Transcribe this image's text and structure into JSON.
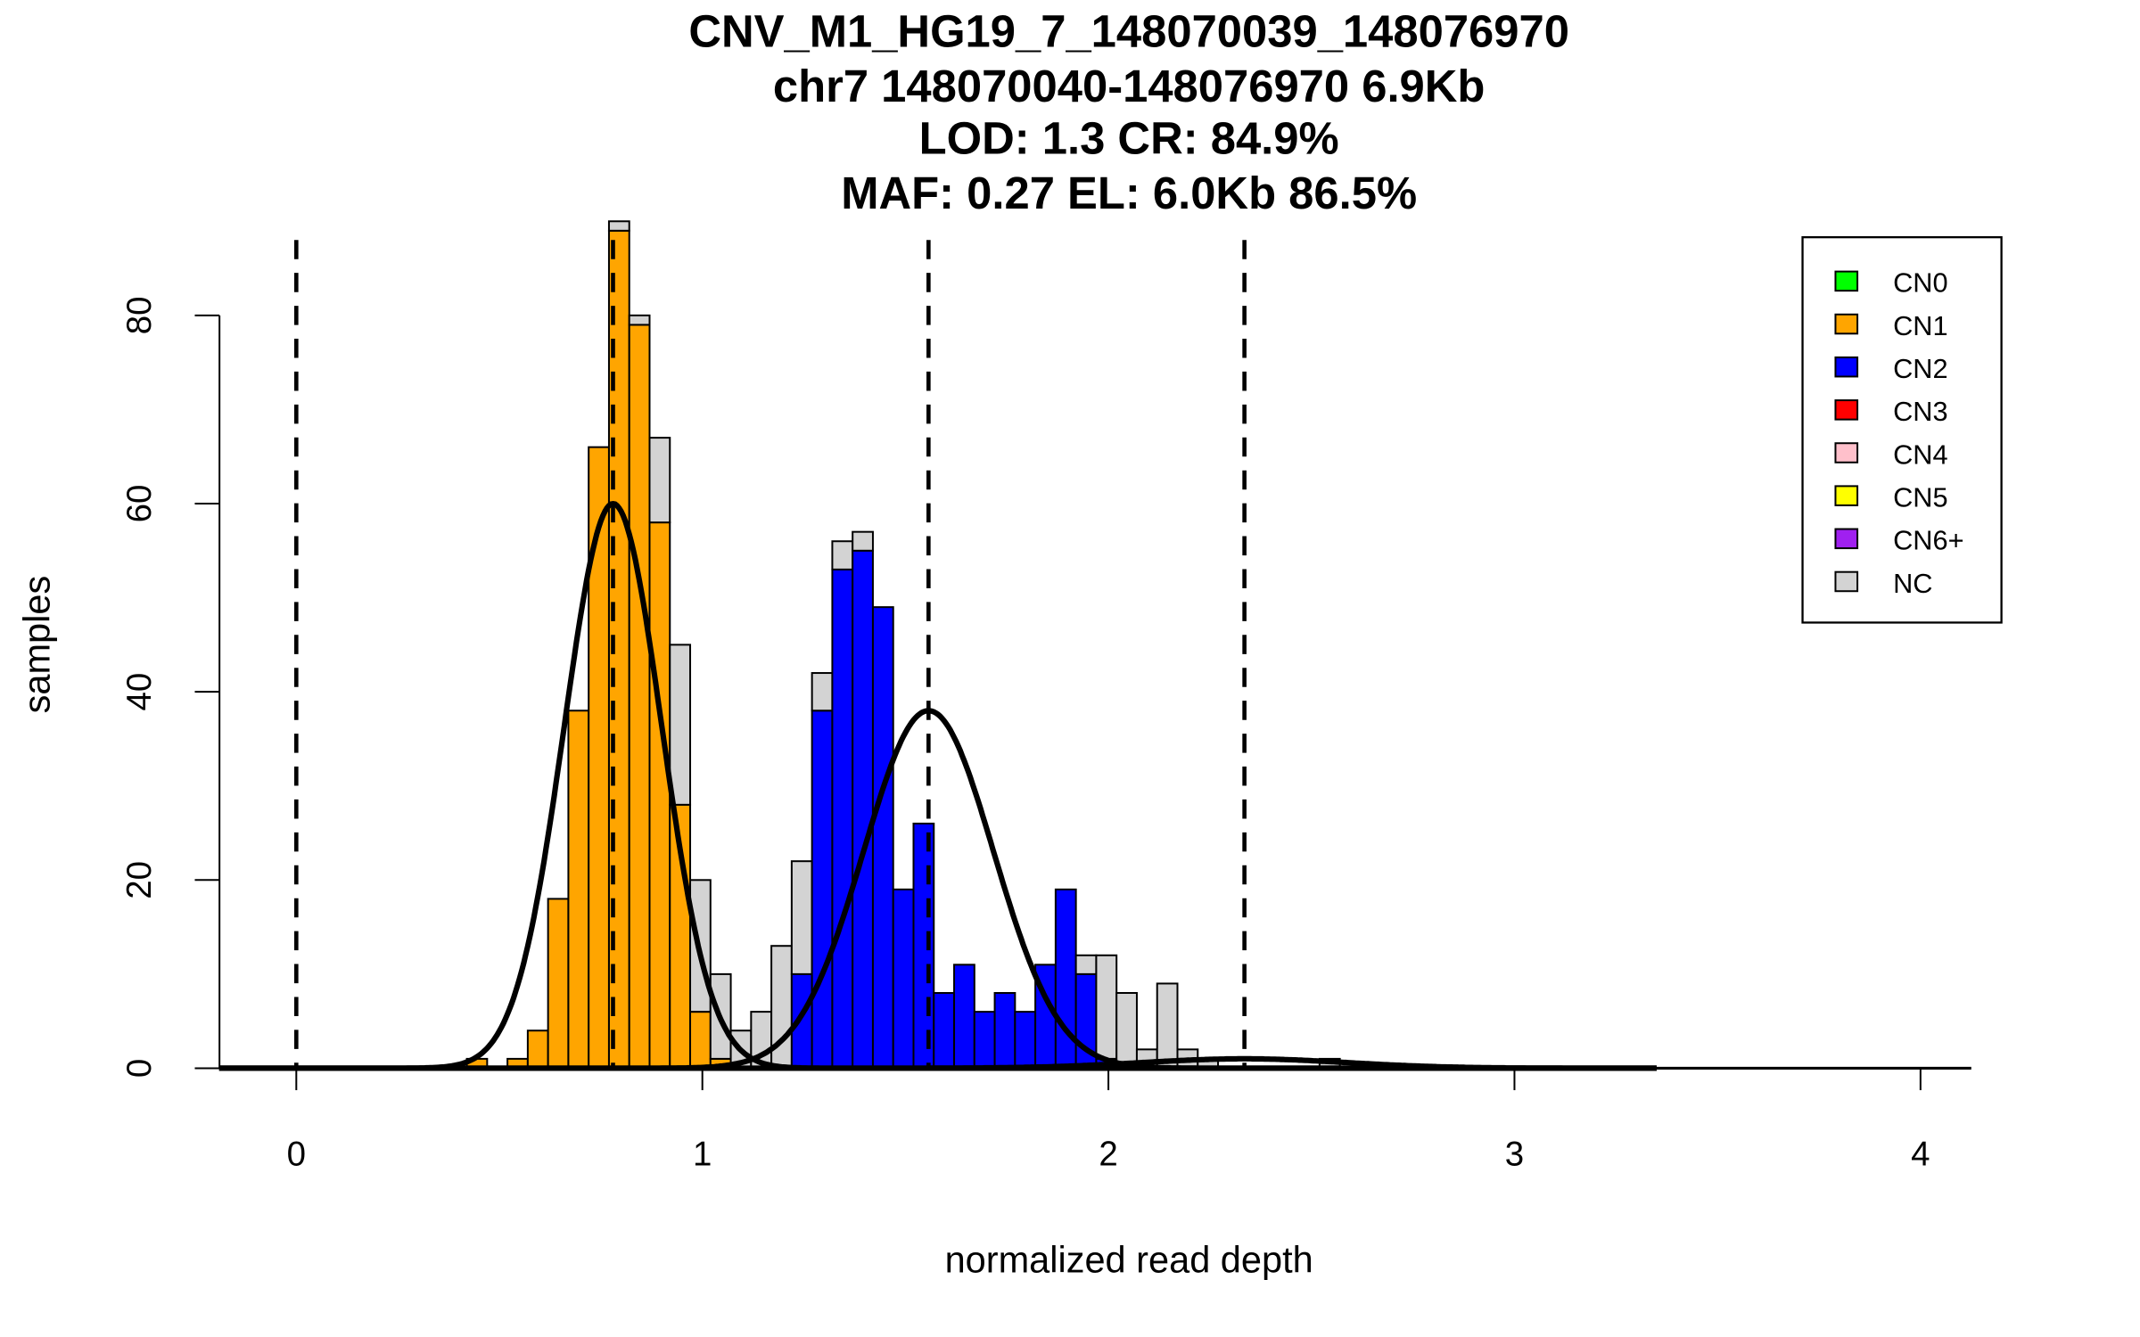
{
  "chart_data": {
    "type": "bar",
    "subtype": "stacked-histogram",
    "title": [
      "CNV_M1_HG19_7_148070039_148076970",
      "chr7 148070040-148076970 6.9Kb",
      "LOD: 1.3 CR: 84.9%",
      "MAF: 0.27 EL: 6.0Kb 86.5%"
    ],
    "xlabel": "normalized read depth",
    "ylabel": "samples",
    "xlim": [
      -0.19,
      4.13
    ],
    "ylim": [
      0,
      88
    ],
    "xticks": [
      "0",
      "1",
      "2",
      "3",
      "4"
    ],
    "yticks": [
      "0",
      "20",
      "40",
      "60",
      "80"
    ],
    "bin_width": 0.05,
    "bins": [
      {
        "start": 0.42,
        "CN1": 1,
        "CN2": 0,
        "NC": 0
      },
      {
        "start": 0.52,
        "CN1": 1,
        "CN2": 0,
        "NC": 0
      },
      {
        "start": 0.57,
        "CN1": 4,
        "CN2": 0,
        "NC": 0
      },
      {
        "start": 0.62,
        "CN1": 18,
        "CN2": 0,
        "NC": 0
      },
      {
        "start": 0.67,
        "CN1": 38,
        "CN2": 0,
        "NC": 0
      },
      {
        "start": 0.72,
        "CN1": 66,
        "CN2": 0,
        "NC": 0
      },
      {
        "start": 0.77,
        "CN1": 89,
        "CN2": 0,
        "NC": 1
      },
      {
        "start": 0.82,
        "CN1": 79,
        "CN2": 0,
        "NC": 1
      },
      {
        "start": 0.87,
        "CN1": 58,
        "CN2": 0,
        "NC": 9
      },
      {
        "start": 0.92,
        "CN1": 28,
        "CN2": 0,
        "NC": 17
      },
      {
        "start": 0.97,
        "CN1": 6,
        "CN2": 0,
        "NC": 14
      },
      {
        "start": 1.02,
        "CN1": 1,
        "CN2": 0,
        "NC": 9
      },
      {
        "start": 1.07,
        "CN1": 0,
        "CN2": 0,
        "NC": 4
      },
      {
        "start": 1.12,
        "CN1": 0,
        "CN2": 0,
        "NC": 6
      },
      {
        "start": 1.17,
        "CN1": 0,
        "CN2": 0,
        "NC": 13
      },
      {
        "start": 1.22,
        "CN1": 0,
        "CN2": 10,
        "NC": 12
      },
      {
        "start": 1.27,
        "CN1": 0,
        "CN2": 38,
        "NC": 4
      },
      {
        "start": 1.32,
        "CN1": 0,
        "CN2": 53,
        "NC": 3
      },
      {
        "start": 1.37,
        "CN1": 0,
        "CN2": 55,
        "NC": 2
      },
      {
        "start": 1.42,
        "CN1": 0,
        "CN2": 49,
        "NC": 0
      },
      {
        "start": 1.47,
        "CN1": 0,
        "CN2": 19,
        "NC": 0
      },
      {
        "start": 1.52,
        "CN1": 0,
        "CN2": 26,
        "NC": 0
      },
      {
        "start": 1.57,
        "CN1": 0,
        "CN2": 8,
        "NC": 0
      },
      {
        "start": 1.62,
        "CN1": 0,
        "CN2": 11,
        "NC": 0
      },
      {
        "start": 1.67,
        "CN1": 0,
        "CN2": 6,
        "NC": 0
      },
      {
        "start": 1.72,
        "CN1": 0,
        "CN2": 8,
        "NC": 0
      },
      {
        "start": 1.77,
        "CN1": 0,
        "CN2": 6,
        "NC": 0
      },
      {
        "start": 1.82,
        "CN1": 0,
        "CN2": 11,
        "NC": 0
      },
      {
        "start": 1.87,
        "CN1": 0,
        "CN2": 19,
        "NC": 0
      },
      {
        "start": 1.92,
        "CN1": 0,
        "CN2": 10,
        "NC": 2
      },
      {
        "start": 1.97,
        "CN1": 0,
        "CN2": 1,
        "NC": 11
      },
      {
        "start": 2.02,
        "CN1": 0,
        "CN2": 0,
        "NC": 8
      },
      {
        "start": 2.07,
        "CN1": 0,
        "CN2": 0,
        "NC": 2
      },
      {
        "start": 2.12,
        "CN1": 0,
        "CN2": 0,
        "NC": 9
      },
      {
        "start": 2.17,
        "CN1": 0,
        "CN2": 0,
        "NC": 2
      },
      {
        "start": 2.22,
        "CN1": 0,
        "CN2": 0,
        "NC": 1
      },
      {
        "start": 2.52,
        "CN1": 0,
        "CN2": 0,
        "NC": 1
      }
    ],
    "fitted_curves": [
      {
        "mean": 0.78,
        "sd": 0.12,
        "peak": 60
      },
      {
        "mean": 1.557,
        "sd": 0.16,
        "peak": 38
      },
      {
        "mean": 2.335,
        "sd": 0.25,
        "peak": 1
      }
    ],
    "dashed_lines_x": [
      0,
      0.78,
      1.557,
      2.335
    ],
    "legend": {
      "position": "top-right",
      "entries": [
        {
          "label": "CN0",
          "color": "#00ff00"
        },
        {
          "label": "CN1",
          "color": "#ffa500"
        },
        {
          "label": "CN2",
          "color": "#0000ff"
        },
        {
          "label": "CN3",
          "color": "#ff0000"
        },
        {
          "label": "CN4",
          "color": "#ffc0cb"
        },
        {
          "label": "CN5",
          "color": "#ffff00"
        },
        {
          "label": "CN6+",
          "color": "#a020f0"
        },
        {
          "label": "NC",
          "color": "#d3d3d3"
        }
      ]
    }
  }
}
